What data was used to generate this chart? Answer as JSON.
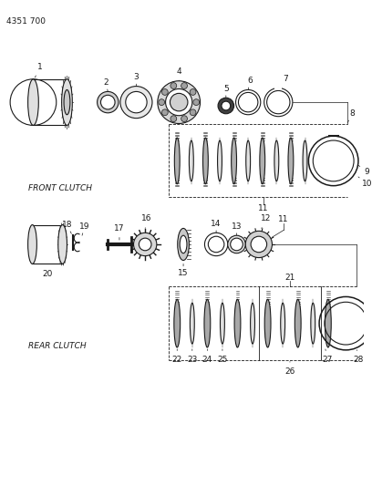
{
  "title_code": "4351 700",
  "bg_color": "#ffffff",
  "line_color": "#1a1a1a",
  "fig_width": 4.08,
  "fig_height": 5.33,
  "dpi": 100,
  "labels": {
    "front_clutch": "FRONT CLUTCH",
    "rear_clutch": "REAR CLUTCH"
  }
}
